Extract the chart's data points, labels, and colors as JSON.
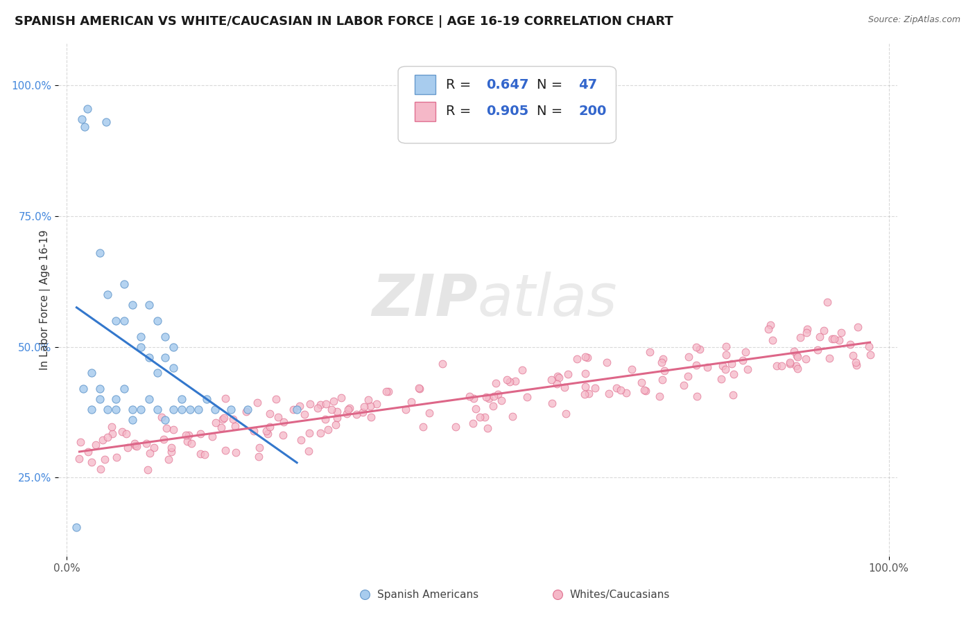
{
  "title": "SPANISH AMERICAN VS WHITE/CAUCASIAN IN LABOR FORCE | AGE 16-19 CORRELATION CHART",
  "source": "Source: ZipAtlas.com",
  "ylabel": "In Labor Force | Age 16-19",
  "ytick_labels": [
    "25.0%",
    "50.0%",
    "75.0%",
    "100.0%"
  ],
  "ytick_values": [
    0.25,
    0.5,
    0.75,
    1.0
  ],
  "xtick_labels": [
    "0.0%",
    "100.0%"
  ],
  "xtick_values": [
    0.0,
    1.0
  ],
  "xlim": [
    -0.01,
    1.01
  ],
  "ylim": [
    0.1,
    1.08
  ],
  "color_blue_face": "#A8CCEE",
  "color_blue_edge": "#6699CC",
  "color_blue_line": "#3377CC",
  "color_pink_face": "#F5B8C8",
  "color_pink_edge": "#E07090",
  "color_pink_line": "#DD6688",
  "background": "#FFFFFF",
  "grid_color": "#BBBBBB",
  "tick_color_blue": "#4488DD",
  "tick_color_gray": "#555555",
  "title_fontsize": 13,
  "ylabel_fontsize": 11,
  "tick_fontsize": 11,
  "legend_fontsize": 14,
  "watermark_fontsize": 60
}
